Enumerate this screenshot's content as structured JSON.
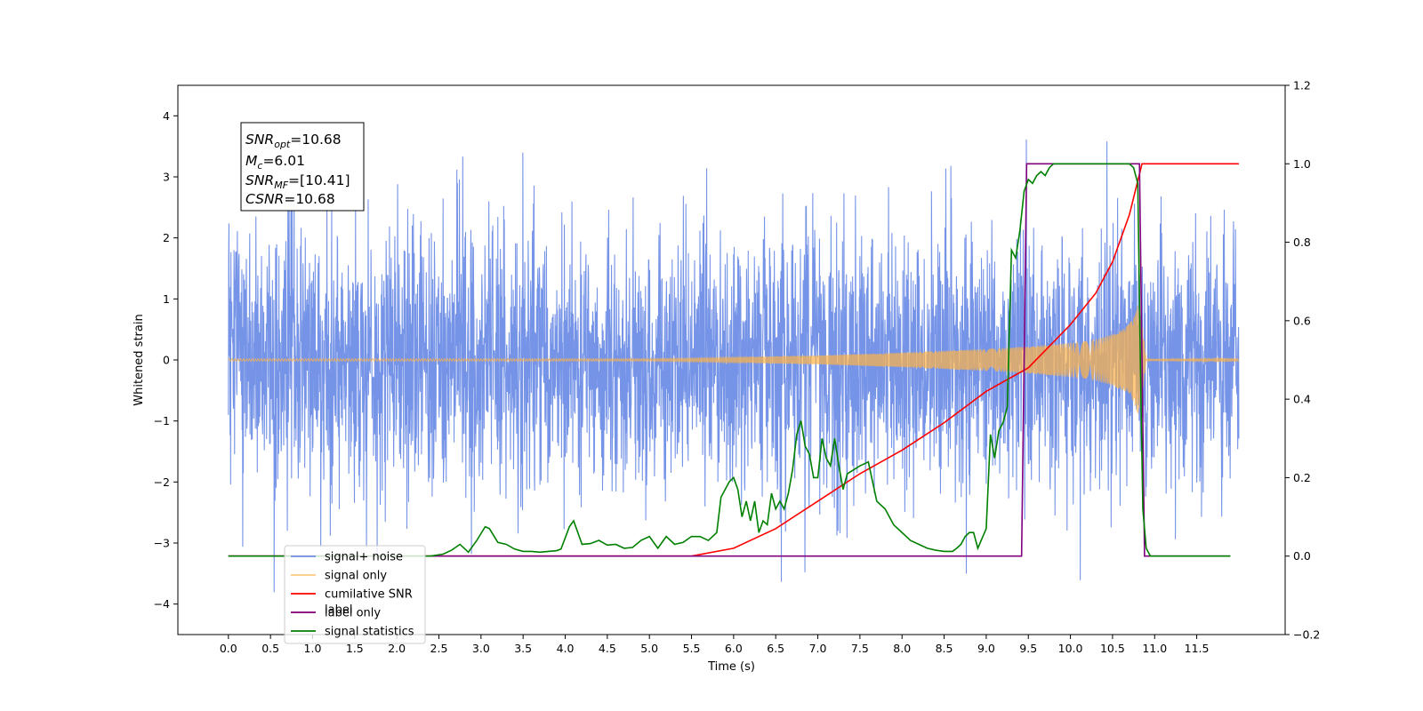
{
  "chart_data": {
    "type": "line",
    "xlabel": "Time (s)",
    "ylabel": "Whitened strain",
    "xlim": [
      -0.6,
      12.55
    ],
    "ylim": [
      -4.5,
      4.5
    ],
    "y2lim": [
      -0.2,
      1.2
    ],
    "x_ticks": [
      "0.0",
      "0.5",
      "1.0",
      "1.5",
      "2.0",
      "2.5",
      "3.0",
      "3.5",
      "4.0",
      "4.5",
      "5.0",
      "5.5",
      "6.0",
      "6.5",
      "7.0",
      "7.5",
      "8.0",
      "8.5",
      "9.0",
      "9.5",
      "10.0",
      "10.5",
      "11.0",
      "11.5"
    ],
    "y_ticks": [
      "4",
      "3",
      "2",
      "1",
      "0",
      "−1",
      "−2",
      "−3",
      "−4"
    ],
    "y2_ticks": [
      "1.2",
      "1.0",
      "0.8",
      "0.6",
      "0.4",
      "0.2",
      "0.0",
      "−0.2"
    ],
    "grid": false,
    "legend_position": "lower-left",
    "series": [
      {
        "name": "signal+ noise",
        "axis": "left",
        "color": "#6f8ee6",
        "x_range": [
          0.0,
          12.0
        ],
        "typical_amplitude": 2.0,
        "peak_max": 4.05,
        "peak_min": -4.1
      },
      {
        "name": "signal only",
        "axis": "left",
        "color": "#ffb347",
        "envelope_x": [
          0.0,
          5.0,
          6.0,
          7.0,
          8.0,
          9.0,
          9.5,
          10.0,
          10.3,
          10.5,
          10.65,
          10.75,
          10.8,
          10.85,
          10.9,
          12.0
        ],
        "envelope_y": [
          0.02,
          0.02,
          0.04,
          0.07,
          0.12,
          0.18,
          0.22,
          0.28,
          0.34,
          0.42,
          0.52,
          0.68,
          0.9,
          0.6,
          0.02,
          0.02
        ]
      },
      {
        "name": "cumilative SNR",
        "axis": "right",
        "color": "#ff0000",
        "x": [
          0.0,
          5.5,
          6.0,
          6.5,
          7.0,
          7.5,
          8.0,
          8.5,
          9.0,
          9.5,
          10.0,
          10.3,
          10.5,
          10.7,
          10.85,
          10.9,
          12.0
        ],
        "values": [
          0.0,
          0.0,
          0.02,
          0.07,
          0.14,
          0.21,
          0.27,
          0.34,
          0.42,
          0.48,
          0.59,
          0.67,
          0.75,
          0.87,
          1.0,
          1.0,
          1.0
        ]
      },
      {
        "name": "label only",
        "axis": "right",
        "color": "#ffb347",
        "x": [],
        "values": []
      },
      {
        "name": "label",
        "axis": "right",
        "color": "#800080",
        "x": [
          0.0,
          9.42,
          9.48,
          10.82,
          10.88,
          11.9
        ],
        "values": [
          0.0,
          0.0,
          1.0,
          1.0,
          0.0,
          0.0
        ]
      },
      {
        "name": "signal statistics",
        "axis": "right",
        "color": "#008000",
        "x": [
          0.0,
          2.4,
          2.55,
          2.65,
          2.75,
          2.85,
          2.95,
          3.05,
          3.1,
          3.2,
          3.3,
          3.4,
          3.5,
          3.6,
          3.7,
          3.8,
          3.9,
          3.95,
          4.05,
          4.1,
          4.2,
          4.3,
          4.4,
          4.5,
          4.6,
          4.7,
          4.8,
          4.9,
          5.0,
          5.1,
          5.2,
          5.3,
          5.4,
          5.5,
          5.6,
          5.7,
          5.8,
          5.85,
          5.9,
          5.95,
          6.0,
          6.05,
          6.1,
          6.15,
          6.2,
          6.25,
          6.3,
          6.35,
          6.4,
          6.45,
          6.5,
          6.55,
          6.6,
          6.65,
          6.7,
          6.75,
          6.8,
          6.85,
          6.9,
          6.95,
          7.0,
          7.05,
          7.1,
          7.15,
          7.2,
          7.25,
          7.3,
          7.35,
          7.5,
          7.6,
          7.7,
          7.8,
          7.9,
          8.0,
          8.1,
          8.2,
          8.3,
          8.4,
          8.5,
          8.6,
          8.65,
          8.7,
          8.75,
          8.8,
          8.85,
          8.9,
          9.0,
          9.05,
          9.1,
          9.15,
          9.2,
          9.25,
          9.3,
          9.35,
          9.4,
          9.45,
          9.5,
          9.55,
          9.6,
          9.65,
          9.7,
          9.75,
          9.8,
          9.9,
          10.0,
          10.2,
          10.4,
          10.6,
          10.7,
          10.75,
          10.8,
          10.83,
          10.86,
          10.9,
          10.95,
          11.0,
          11.1,
          11.9
        ],
        "values": [
          0.0,
          0.0,
          0.005,
          0.015,
          0.03,
          0.01,
          0.04,
          0.075,
          0.07,
          0.035,
          0.03,
          0.018,
          0.012,
          0.012,
          0.01,
          0.012,
          0.014,
          0.018,
          0.075,
          0.09,
          0.03,
          0.032,
          0.04,
          0.028,
          0.03,
          0.02,
          0.022,
          0.04,
          0.05,
          0.02,
          0.05,
          0.03,
          0.035,
          0.05,
          0.05,
          0.04,
          0.06,
          0.15,
          0.17,
          0.19,
          0.2,
          0.17,
          0.1,
          0.14,
          0.09,
          0.14,
          0.06,
          0.09,
          0.08,
          0.16,
          0.12,
          0.14,
          0.12,
          0.16,
          0.22,
          0.31,
          0.345,
          0.28,
          0.26,
          0.2,
          0.2,
          0.3,
          0.25,
          0.23,
          0.3,
          0.23,
          0.17,
          0.21,
          0.23,
          0.24,
          0.14,
          0.12,
          0.08,
          0.06,
          0.04,
          0.03,
          0.02,
          0.015,
          0.012,
          0.012,
          0.02,
          0.03,
          0.05,
          0.06,
          0.06,
          0.02,
          0.07,
          0.31,
          0.25,
          0.32,
          0.34,
          0.38,
          0.78,
          0.76,
          0.83,
          0.93,
          0.96,
          0.95,
          0.97,
          0.98,
          0.97,
          0.99,
          1.0,
          1.0,
          1.0,
          1.0,
          1.0,
          1.0,
          1.0,
          0.99,
          0.95,
          0.5,
          0.12,
          0.02,
          0.0,
          0.0,
          0.0,
          0.0
        ]
      }
    ],
    "annotations": [
      {
        "key": "SNR",
        "sub": "opt",
        "value": "=10.68"
      },
      {
        "key": "M",
        "sub": "c",
        "value": "=6.01"
      },
      {
        "key": "SNR",
        "sub": "MF",
        "value": "=[10.41]"
      },
      {
        "key": "CSNR",
        "sub": "",
        "value": "=10.68"
      }
    ],
    "legend": [
      {
        "label": "signal+ noise",
        "color": "#6f8ee6"
      },
      {
        "label": "signal only",
        "color": "#ffb347"
      },
      {
        "label": "cumilative SNR",
        "color": "#ff0000"
      },
      {
        "label": "label only",
        "color": "#ffb347"
      },
      {
        "label": "label",
        "color": "#800080"
      },
      {
        "label": "signal statistics",
        "color": "#008000"
      }
    ]
  }
}
